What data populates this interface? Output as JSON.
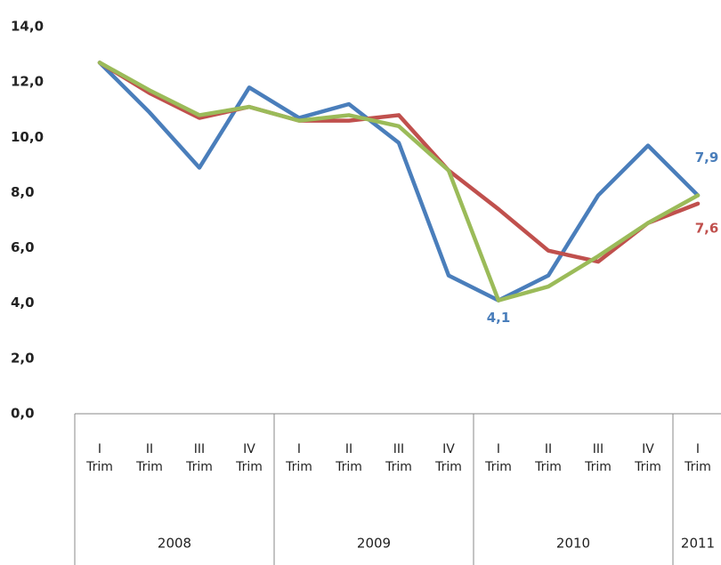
{
  "chart_data": {
    "type": "line",
    "categories": [
      "I Trim",
      "II Trim",
      "III Trim",
      "IV Trim",
      "I Trim",
      "II Trim",
      "III Trim",
      "IV Trim",
      "I Trim",
      "II Trim",
      "III Trim",
      "IV Trim",
      "I Trim"
    ],
    "groups": [
      {
        "label": "2008",
        "span": 4
      },
      {
        "label": "2009",
        "span": 4
      },
      {
        "label": "2010",
        "span": 4
      },
      {
        "label": "2011",
        "span": 1
      }
    ],
    "series": [
      {
        "color": "#4a7ebb",
        "values": [
          12.7,
          10.9,
          8.9,
          11.8,
          10.7,
          11.2,
          9.8,
          5.0,
          4.1,
          5.0,
          7.9,
          9.7,
          7.9
        ],
        "value_labels": [
          null,
          null,
          null,
          null,
          null,
          null,
          null,
          null,
          "4,1",
          null,
          null,
          null,
          "7,9"
        ]
      },
      {
        "color": "#c0504d",
        "values": [
          12.7,
          11.6,
          10.7,
          11.1,
          10.6,
          10.6,
          10.8,
          8.8,
          7.4,
          5.9,
          5.5,
          6.9,
          7.6
        ],
        "value_labels": [
          null,
          null,
          null,
          null,
          null,
          null,
          null,
          null,
          null,
          null,
          null,
          null,
          "7,6"
        ]
      },
      {
        "color": "#9bbb59",
        "values": [
          12.7,
          11.7,
          10.8,
          11.1,
          10.6,
          10.8,
          10.4,
          8.8,
          4.1,
          4.6,
          5.7,
          6.9,
          7.9
        ]
      }
    ],
    "ylim": [
      0,
      14
    ],
    "yticks": [
      {
        "value": 0,
        "label": "0,0"
      },
      {
        "value": 2,
        "label": "2,0"
      },
      {
        "value": 4,
        "label": "4,0"
      },
      {
        "value": 6,
        "label": "6,0"
      },
      {
        "value": 8,
        "label": "8,0"
      },
      {
        "value": 10,
        "label": "10,0"
      },
      {
        "value": 12,
        "label": "12,0"
      },
      {
        "value": 14,
        "label": "14,0"
      }
    ],
    "grid": false
  }
}
